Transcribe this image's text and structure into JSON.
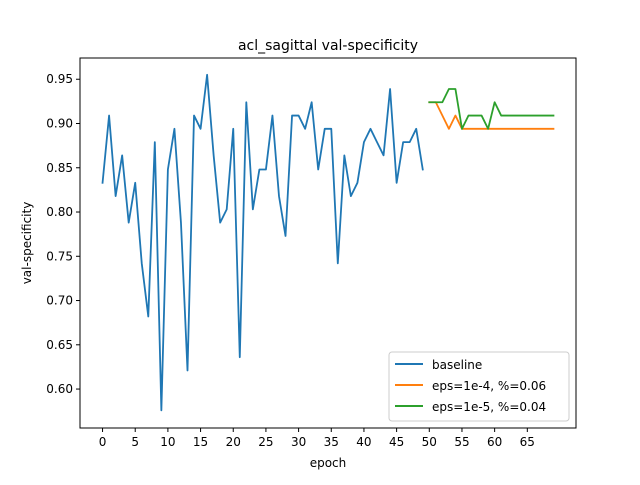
{
  "chart_data": {
    "type": "line",
    "title": "acl_sagittal val-specificity",
    "xlabel": "epoch",
    "ylabel": "val-specificity",
    "xlim": [
      -3.45,
      72.45
    ],
    "ylim": [
      0.556,
      0.974
    ],
    "xticks": [
      0,
      5,
      10,
      15,
      20,
      25,
      30,
      35,
      40,
      45,
      50,
      55,
      60,
      65
    ],
    "xtick_labels": [
      "0",
      "5",
      "10",
      "15",
      "20",
      "25",
      "30",
      "35",
      "40",
      "45",
      "50",
      "55",
      "60",
      "65"
    ],
    "yticks": [
      0.6,
      0.65,
      0.7,
      0.75,
      0.8,
      0.85,
      0.9,
      0.95
    ],
    "ytick_labels": [
      "0.60",
      "0.65",
      "0.70",
      "0.75",
      "0.80",
      "0.85",
      "0.90",
      "0.95"
    ],
    "grid": false,
    "legend_position": "lower-right",
    "series": [
      {
        "name": "baseline",
        "color": "#1f77b4",
        "x": [
          0,
          1,
          2,
          3,
          4,
          5,
          6,
          7,
          8,
          9,
          10,
          11,
          12,
          13,
          14,
          15,
          16,
          17,
          18,
          19,
          20,
          21,
          22,
          23,
          24,
          25,
          26,
          27,
          28,
          29,
          30,
          31,
          32,
          33,
          34,
          35,
          36,
          37,
          38,
          39,
          40,
          41,
          42,
          43,
          44,
          45,
          46,
          47,
          48,
          49
        ],
        "y": [
          0.833,
          0.909,
          0.818,
          0.864,
          0.788,
          0.833,
          0.742,
          0.682,
          0.879,
          0.576,
          0.848,
          0.894,
          0.788,
          0.621,
          0.909,
          0.894,
          0.955,
          0.864,
          0.788,
          0.803,
          0.894,
          0.636,
          0.924,
          0.803,
          0.848,
          0.848,
          0.909,
          0.818,
          0.773,
          0.909,
          0.909,
          0.894,
          0.924,
          0.848,
          0.894,
          0.894,
          0.742,
          0.864,
          0.818,
          0.833,
          0.879,
          0.894,
          0.879,
          0.864,
          0.939,
          0.833,
          0.879,
          0.879,
          0.894,
          0.848
        ]
      },
      {
        "name": "eps=1e-4, %=0.06",
        "color": "#ff7f0e",
        "x": [
          50,
          51,
          52,
          53,
          54,
          55,
          56,
          57,
          58,
          59,
          60,
          61,
          62,
          63,
          64,
          65,
          66,
          67,
          68,
          69
        ],
        "y": [
          0.924,
          0.924,
          0.909,
          0.894,
          0.909,
          0.894,
          0.894,
          0.894,
          0.894,
          0.894,
          0.894,
          0.894,
          0.894,
          0.894,
          0.894,
          0.894,
          0.894,
          0.894,
          0.894,
          0.894
        ]
      },
      {
        "name": "eps=1e-5, %=0.04",
        "color": "#2ca02c",
        "x": [
          50,
          51,
          52,
          53,
          54,
          55,
          56,
          57,
          58,
          59,
          60,
          61,
          62,
          63,
          64,
          65,
          66,
          67,
          68,
          69
        ],
        "y": [
          0.924,
          0.924,
          0.924,
          0.939,
          0.939,
          0.894,
          0.909,
          0.909,
          0.909,
          0.894,
          0.924,
          0.909,
          0.909,
          0.909,
          0.909,
          0.909,
          0.909,
          0.909,
          0.909,
          0.909
        ]
      }
    ]
  }
}
